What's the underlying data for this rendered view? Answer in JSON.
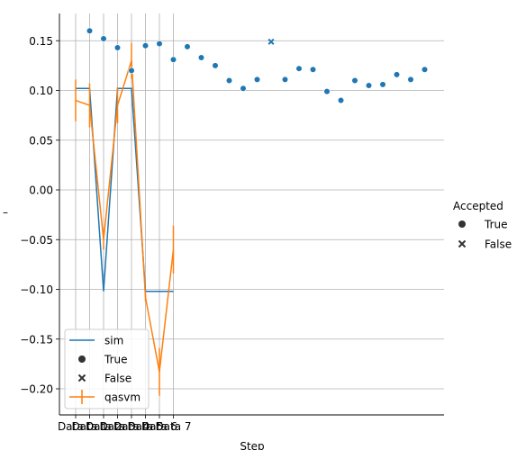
{
  "chart_data": {
    "type": "line+scatter",
    "title": "",
    "xlabel": "Step",
    "ylabel": "–",
    "x_tick_labels": [
      "Data 0",
      "Data 1",
      "Data 2",
      "Data 3",
      "Data 4",
      "Data 5",
      "Data 6",
      "Data 7"
    ],
    "ylim": [
      -0.225,
      0.177
    ],
    "y_ticks": [
      0.15,
      0.1,
      0.05,
      0.0,
      -0.05,
      -0.1,
      -0.15,
      -0.2
    ],
    "y_tick_labels": [
      "0.15",
      "0.10",
      "0.05",
      "0.00",
      "−0.05",
      "−0.10",
      "−0.15",
      "−0.20"
    ],
    "grid": "x and y",
    "series": [
      {
        "name": "sim",
        "kind": "step-line",
        "color": "#1f77b4",
        "x": [
          0,
          1,
          2,
          3,
          4,
          5,
          6,
          7
        ],
        "y": [
          0.102,
          0.102,
          -0.102,
          0.102,
          0.102,
          -0.102,
          -0.102,
          -0.102
        ]
      },
      {
        "name": "qasvm",
        "kind": "line-with-errorbars",
        "color": "#ff7f0e",
        "x": [
          0,
          1,
          2,
          3,
          4,
          5,
          6,
          7
        ],
        "y": [
          0.09,
          0.085,
          -0.05,
          0.085,
          0.13,
          -0.108,
          -0.183,
          -0.06
        ],
        "yerr": [
          0.021,
          0.022,
          0.01,
          0.018,
          0.018,
          0.004,
          0.024,
          0.024
        ]
      },
      {
        "name": "Accepted",
        "kind": "scatter",
        "color": "#1f77b4",
        "points": [
          {
            "x": 1,
            "y": 0.16,
            "accepted": true
          },
          {
            "x": 2,
            "y": 0.152,
            "accepted": true
          },
          {
            "x": 3,
            "y": 0.143,
            "accepted": true
          },
          {
            "x": 4,
            "y": 0.12,
            "accepted": true
          },
          {
            "x": 5,
            "y": 0.145,
            "accepted": true
          },
          {
            "x": 6,
            "y": 0.147,
            "accepted": true
          },
          {
            "x": 7,
            "y": 0.131,
            "accepted": true
          },
          {
            "x": 8,
            "y": 0.144,
            "accepted": true
          },
          {
            "x": 9,
            "y": 0.133,
            "accepted": true
          },
          {
            "x": 10,
            "y": 0.125,
            "accepted": true
          },
          {
            "x": 11,
            "y": 0.11,
            "accepted": true
          },
          {
            "x": 12,
            "y": 0.102,
            "accepted": true
          },
          {
            "x": 13,
            "y": 0.111,
            "accepted": true
          },
          {
            "x": 14,
            "y": 0.149,
            "accepted": false
          },
          {
            "x": 15,
            "y": 0.111,
            "accepted": true
          },
          {
            "x": 16,
            "y": 0.122,
            "accepted": true
          },
          {
            "x": 17,
            "y": 0.121,
            "accepted": true
          },
          {
            "x": 18,
            "y": 0.099,
            "accepted": true
          },
          {
            "x": 19,
            "y": 0.09,
            "accepted": true
          },
          {
            "x": 20,
            "y": 0.11,
            "accepted": true
          },
          {
            "x": 21,
            "y": 0.105,
            "accepted": true
          },
          {
            "x": 22,
            "y": 0.106,
            "accepted": true
          },
          {
            "x": 23,
            "y": 0.116,
            "accepted": true
          },
          {
            "x": 24,
            "y": 0.111,
            "accepted": true
          },
          {
            "x": 25,
            "y": 0.121,
            "accepted": true
          }
        ]
      }
    ],
    "legend_inside": {
      "placement": "lower-left",
      "entries": [
        {
          "label": "sim",
          "marker": "line",
          "color": "#1f77b4"
        },
        {
          "label": "True",
          "marker": "circle",
          "color": "#333333"
        },
        {
          "label": "False",
          "marker": "x",
          "color": "#333333"
        },
        {
          "label": "qasvm",
          "marker": "errorbar",
          "color": "#ff7f0e"
        }
      ]
    },
    "legend_outside": {
      "placement": "right",
      "title": "Accepted",
      "entries": [
        {
          "label": "True",
          "marker": "circle"
        },
        {
          "label": "False",
          "marker": "x"
        }
      ]
    }
  }
}
